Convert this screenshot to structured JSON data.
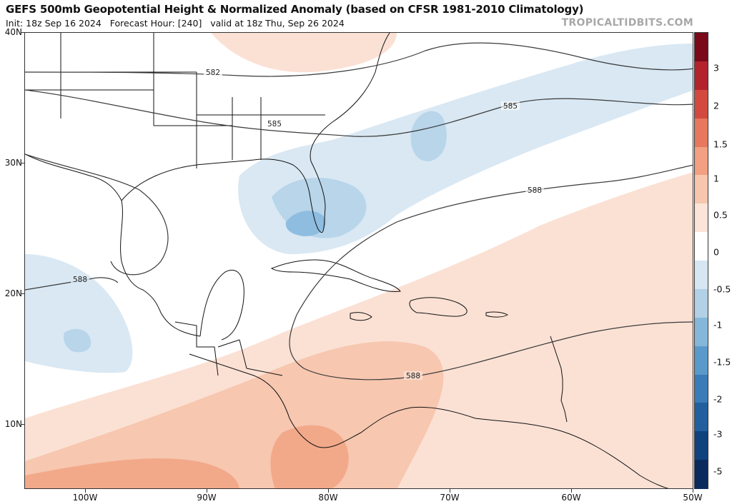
{
  "header": {
    "title": "GEFS 500mb Geopotential Height & Normalized Anomaly (based on CFSR 1981-2010 Climatology)",
    "init": "Init: 18z Sep 16 2024",
    "forecast_hour": "Forecast Hour: [240]",
    "valid": "valid at 18z Thu, Sep 26 2024",
    "brand": "TROPICALTIDBITS.COM"
  },
  "axes": {
    "lat_labels": [
      "40N",
      "30N",
      "20N",
      "10N"
    ],
    "lon_labels": [
      "100W",
      "90W",
      "80W",
      "70W",
      "60W",
      "50W"
    ]
  },
  "contours": {
    "labels": [
      "582",
      "585",
      "585",
      "588",
      "588",
      "588"
    ]
  },
  "colorbar": {
    "labels": [
      "3",
      "2",
      "1.5",
      "1",
      "0.5",
      "0",
      "-0.5",
      "-1",
      "-1.5",
      "-2",
      "-3",
      "-5"
    ],
    "colors": [
      "#7a0a1a",
      "#b4232c",
      "#d4493f",
      "#e7775d",
      "#f29f82",
      "#f8c5ad",
      "#fce4d8",
      "#ffffff",
      "#d6e6f2",
      "#b2d0e6",
      "#85b7da",
      "#5a9acb",
      "#3a7cb8",
      "#225f9e",
      "#10427e",
      "#0a2a5e"
    ]
  },
  "colors": {
    "warm_light": "#fbe1d4",
    "warm_mid": "#f7c7b0",
    "warm_strong": "#f2a98a",
    "cool_light": "#d9e8f3",
    "cool_mid": "#b8d5ea",
    "cool_strong": "#8ebde0",
    "contour": "#3a3a3a",
    "land_outline": "#111111"
  }
}
